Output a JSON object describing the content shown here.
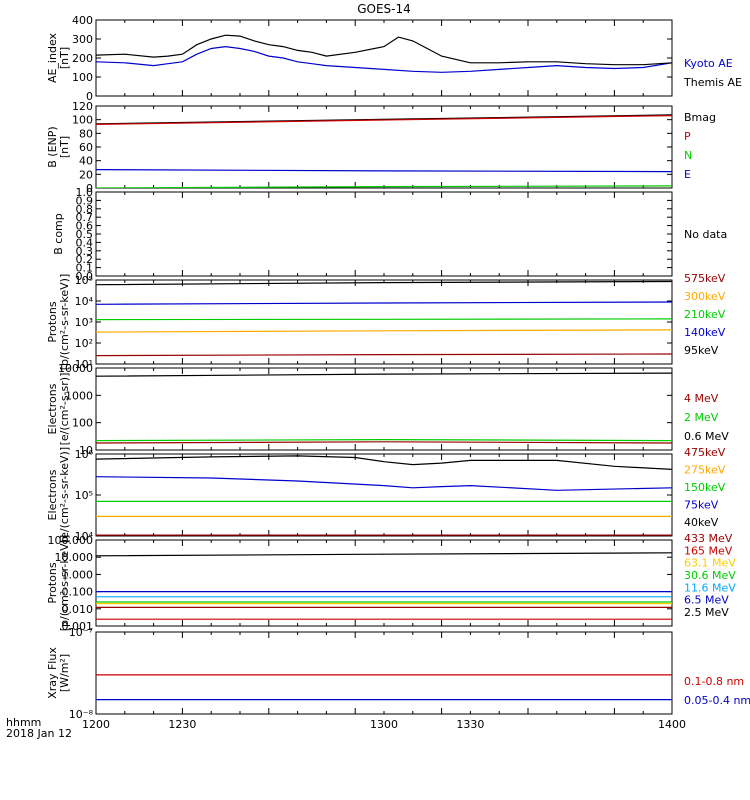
{
  "title": "GOES-14",
  "footer": {
    "hhmm": "hhmm",
    "date": "2018 Jan 12"
  },
  "x_axis": {
    "start": 1200,
    "end": 1400,
    "ticks": [
      "1200",
      "1230",
      "1300",
      "1330",
      "1400"
    ]
  },
  "chart_data": [
    {
      "id": "ae",
      "type": "line",
      "ylabel": [
        "AE_index",
        "[nT]"
      ],
      "yscale": "linear",
      "ylim": [
        0,
        400
      ],
      "yticks": [
        "0",
        "100",
        "200",
        "300",
        "400"
      ],
      "series": [
        {
          "name": "Kyoto AE",
          "color": "#0000cc",
          "x": [
            1200,
            1210,
            1220,
            1225,
            1230,
            1235,
            1240,
            1245,
            1250,
            1255,
            1260,
            1265,
            1270,
            1275,
            1280,
            1290,
            1300,
            1310,
            1320,
            1330,
            1340,
            1350,
            1360,
            1370,
            1380,
            1390,
            1400
          ],
          "y": [
            180,
            175,
            160,
            170,
            180,
            220,
            250,
            260,
            250,
            235,
            210,
            200,
            180,
            170,
            160,
            150,
            140,
            130,
            125,
            130,
            140,
            150,
            160,
            150,
            145,
            150,
            175
          ]
        },
        {
          "name": "Themis AE",
          "color": "#000000",
          "x": [
            1200,
            1210,
            1220,
            1225,
            1230,
            1235,
            1240,
            1245,
            1250,
            1255,
            1260,
            1265,
            1270,
            1275,
            1280,
            1290,
            1300,
            1305,
            1310,
            1315,
            1320,
            1330,
            1340,
            1350,
            1360,
            1370,
            1380,
            1390,
            1400
          ],
          "y": [
            215,
            220,
            205,
            210,
            220,
            270,
            300,
            320,
            315,
            290,
            270,
            260,
            240,
            230,
            210,
            230,
            260,
            310,
            290,
            250,
            210,
            175,
            175,
            180,
            180,
            170,
            165,
            165,
            175
          ]
        }
      ]
    },
    {
      "id": "b",
      "type": "line",
      "ylabel": [
        "B (ENP)",
        "[nT]"
      ],
      "yscale": "linear",
      "ylim": [
        0,
        120
      ],
      "yticks": [
        "0",
        "20",
        "40",
        "60",
        "80",
        "100",
        "120"
      ],
      "series": [
        {
          "name": "Bmag",
          "color": "#000000",
          "x": [
            1200,
            1400
          ],
          "y": [
            94,
            107
          ]
        },
        {
          "name": "P",
          "color": "#cc0000",
          "x": [
            1200,
            1400
          ],
          "y": [
            93,
            106
          ]
        },
        {
          "name": "N",
          "color": "#00cc00",
          "x": [
            1200,
            1300,
            1400
          ],
          "y": [
            0,
            2,
            3
          ]
        },
        {
          "name": "E",
          "color": "#0000cc",
          "x": [
            1200,
            1300,
            1400
          ],
          "y": [
            27,
            25,
            24
          ]
        }
      ]
    },
    {
      "id": "bcomp",
      "type": "line",
      "ylabel": [
        "B comp"
      ],
      "yscale": "linear",
      "ylim": [
        0,
        1.0
      ],
      "yticks": [
        "0.0",
        "0.1",
        "0.2",
        "0.3",
        "0.4",
        "0.5",
        "0.6",
        "0.7",
        "0.8",
        "0.9",
        "1.0"
      ],
      "nodata": "No data",
      "series": []
    },
    {
      "id": "protons_low",
      "type": "line",
      "ylabel": [
        "Protons",
        "[p/(cm²-s-sr-keV)]"
      ],
      "yscale": "log",
      "ylim": [
        10,
        100000
      ],
      "yticks": [
        "10¹",
        "10²",
        "10³",
        "10⁴",
        "10⁵"
      ],
      "series": [
        {
          "name": "575keV",
          "color": "#990000",
          "x": [
            1200,
            1300,
            1400
          ],
          "y": [
            25,
            28,
            30
          ]
        },
        {
          "name": "300keV",
          "color": "#ffaa00",
          "x": [
            1200,
            1300,
            1400
          ],
          "y": [
            330,
            380,
            420
          ]
        },
        {
          "name": "210keV",
          "color": "#00cc00",
          "x": [
            1200,
            1300,
            1400
          ],
          "y": [
            1300,
            1350,
            1400
          ]
        },
        {
          "name": "140keV",
          "color": "#0000cc",
          "x": [
            1200,
            1300,
            1400
          ],
          "y": [
            7000,
            8000,
            9000
          ]
        },
        {
          "name": "95keV",
          "color": "#000000",
          "x": [
            1200,
            1300,
            1400
          ],
          "y": [
            60000,
            75000,
            85000
          ]
        }
      ]
    },
    {
      "id": "electrons_mev",
      "type": "line",
      "ylabel": [
        "Electrons",
        "[e/(cm²-s-sr)]"
      ],
      "yscale": "log",
      "ylim": [
        10,
        10000
      ],
      "yticks": [
        "10",
        "100",
        "1000",
        "10000"
      ],
      "series": [
        {
          "name": "4 MeV",
          "color": "#990000",
          "x": [
            1200,
            1300,
            1400
          ],
          "y": [
            18,
            20,
            18
          ]
        },
        {
          "name": "2 MeV",
          "color": "#00cc00",
          "x": [
            1200,
            1300,
            1400
          ],
          "y": [
            22,
            24,
            22
          ]
        },
        {
          "name": "0.6 MeV",
          "color": "#000000",
          "x": [
            1200,
            1300,
            1400
          ],
          "y": [
            5000,
            6000,
            6500
          ]
        }
      ]
    },
    {
      "id": "electrons_kev",
      "type": "line",
      "ylabel": [
        "Electrons",
        "[e/(cm²-s-sr-keV)]"
      ],
      "yscale": "log",
      "ylim": [
        10000,
        1000000
      ],
      "yticks": [
        "10⁴",
        "10⁵",
        "10⁶"
      ],
      "series": [
        {
          "name": "475keV",
          "color": "#990000",
          "x": [
            1200,
            1400
          ],
          "y": [
            10500,
            10500
          ]
        },
        {
          "name": "275keV",
          "color": "#ffaa00",
          "x": [
            1200,
            1400
          ],
          "y": [
            30000,
            30000
          ]
        },
        {
          "name": "150keV",
          "color": "#00cc00",
          "x": [
            1200,
            1400
          ],
          "y": [
            70000,
            70000
          ]
        },
        {
          "name": "75keV",
          "color": "#0000cc",
          "x": [
            1200,
            1240,
            1270,
            1300,
            1310,
            1320,
            1330,
            1360,
            1400
          ],
          "y": [
            280000,
            260000,
            220000,
            170000,
            150000,
            160000,
            170000,
            130000,
            150000
          ]
        },
        {
          "name": "40keV",
          "color": "#000000",
          "x": [
            1200,
            1240,
            1270,
            1290,
            1300,
            1310,
            1320,
            1330,
            1360,
            1380,
            1400
          ],
          "y": [
            750000,
            850000,
            900000,
            820000,
            650000,
            550000,
            600000,
            700000,
            700000,
            500000,
            420000
          ]
        }
      ]
    },
    {
      "id": "protons_mev",
      "type": "line",
      "ylabel": [
        "Protons",
        "[p/(cm²-s-sr-keV)]"
      ],
      "yscale": "log",
      "ylim": [
        0.001,
        100
      ],
      "yticks": [
        "0.001",
        "0.010",
        "0.100",
        "1.000",
        "10.000",
        "100.000"
      ],
      "series": [
        {
          "name": "433 MeV",
          "color": "#990000",
          "x": [
            1200,
            1400
          ],
          "y": [
            0.012,
            0.012
          ]
        },
        {
          "name": "165 MeV",
          "color": "#cc0000",
          "x": [
            1200,
            1400
          ],
          "y": [
            0.0025,
            0.0025
          ]
        },
        {
          "name": "63.1 MeV",
          "color": "#ffcc00",
          "x": [
            1200,
            1400
          ],
          "y": [
            0.02,
            0.02
          ]
        },
        {
          "name": "30.6 MeV",
          "color": "#00cc00",
          "x": [
            1200,
            1400
          ],
          "y": [
            0.025,
            0.025
          ]
        },
        {
          "name": "11.6 MeV",
          "color": "#00aaff",
          "x": [
            1200,
            1400
          ],
          "y": [
            0.05,
            0.05
          ]
        },
        {
          "name": "6.5 MeV",
          "color": "#0000cc",
          "x": [
            1200,
            1400
          ],
          "y": [
            0.1,
            0.1
          ]
        },
        {
          "name": "2.5 MeV",
          "color": "#000000",
          "x": [
            1200,
            1300,
            1400
          ],
          "y": [
            12,
            15,
            18
          ]
        }
      ]
    },
    {
      "id": "xray",
      "type": "line",
      "ylabel": [
        "Xray Flux",
        "[W/m²]"
      ],
      "yscale": "log",
      "ylim": [
        1e-08,
        1e-07
      ],
      "yticks": [
        "10⁻⁸",
        "10⁻⁷"
      ],
      "series": [
        {
          "name": "0.1-0.8 nm",
          "color": "#cc0000",
          "x": [
            1200,
            1400
          ],
          "y": [
            3e-08,
            3e-08
          ]
        },
        {
          "name": "0.05-0.4 nm",
          "color": "#0000cc",
          "x": [
            1200,
            1400
          ],
          "y": [
            1.5e-08,
            1.5e-08
          ]
        }
      ]
    }
  ]
}
